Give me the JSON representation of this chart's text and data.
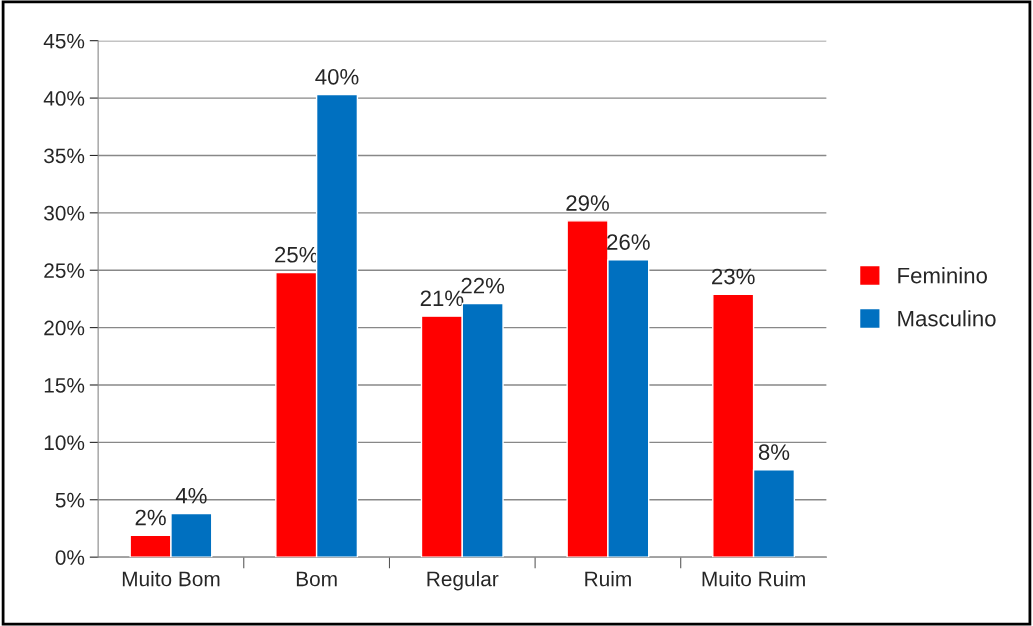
{
  "chart_data": {
    "type": "bar",
    "categories": [
      "Muito Bom",
      "Bom",
      "Regular",
      "Ruim",
      "Muito Ruim"
    ],
    "series": [
      {
        "name": "Feminino",
        "color": "#ff0000",
        "values": [
          1.9,
          24.8,
          21.0,
          29.3,
          22.9
        ],
        "value_labels": [
          "2%",
          "25%",
          "21%",
          "29%",
          "23%"
        ]
      },
      {
        "name": "Masculino",
        "color": "#0070c0",
        "values": [
          3.8,
          40.3,
          22.1,
          25.9,
          7.6
        ],
        "value_labels": [
          "4%",
          "40%",
          "22%",
          "26%",
          "8%"
        ]
      }
    ],
    "ylim": [
      0,
      45
    ],
    "yticks": [
      {
        "value": 0,
        "label": "0%"
      },
      {
        "value": 5,
        "label": "5%"
      },
      {
        "value": 10,
        "label": "10%"
      },
      {
        "value": 15,
        "label": "15%"
      },
      {
        "value": 20,
        "label": "20%"
      },
      {
        "value": 25,
        "label": "25%"
      },
      {
        "value": 30,
        "label": "30%"
      },
      {
        "value": 35,
        "label": "35%"
      },
      {
        "value": 40,
        "label": "40%"
      },
      {
        "value": 45,
        "label": "45%"
      }
    ],
    "grid": "y",
    "legend": "right"
  }
}
